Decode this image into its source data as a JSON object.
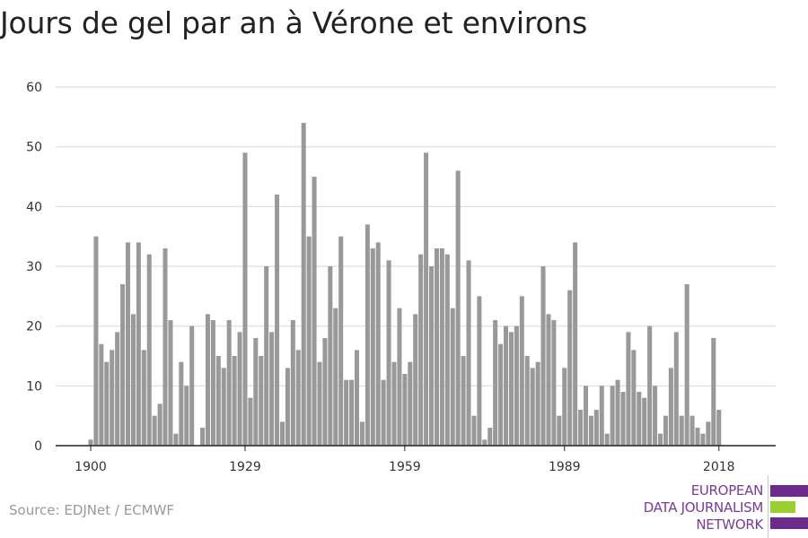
{
  "title": "Jours de gel par an à Vérone et environs",
  "source": "Source: EDJNet / ECMWF",
  "logo": {
    "lines": [
      "EUROPEAN",
      "DATA JOURNALISM",
      "NETWORK"
    ],
    "colors": [
      "#6b2a8c",
      "#9ad02d",
      "#6b2a8c"
    ]
  },
  "colors": {
    "bar": "#999999",
    "grid": "#dddddd",
    "axis": "#222222",
    "text": "#333333"
  },
  "chart_data": {
    "type": "bar",
    "title": "Jours de gel par an à Vérone et environs",
    "xlabel": "",
    "ylabel": "",
    "x_start": 1900,
    "x_ticks": [
      1900,
      1929,
      1959,
      1989,
      2018
    ],
    "y_ticks": [
      0,
      10,
      20,
      30,
      40,
      50,
      60
    ],
    "ylim": [
      0,
      60
    ],
    "grid": true,
    "values": [
      1,
      35,
      17,
      14,
      16,
      19,
      27,
      34,
      22,
      34,
      16,
      32,
      5,
      7,
      33,
      21,
      2,
      14,
      10,
      20,
      0,
      3,
      22,
      21,
      15,
      13,
      21,
      15,
      19,
      49,
      8,
      18,
      15,
      30,
      19,
      42,
      4,
      13,
      21,
      16,
      54,
      35,
      45,
      14,
      18,
      30,
      23,
      35,
      11,
      11,
      16,
      4,
      37,
      33,
      34,
      11,
      31,
      14,
      23,
      12,
      14,
      22,
      32,
      49,
      30,
      33,
      33,
      32,
      23,
      46,
      15,
      31,
      5,
      25,
      1,
      3,
      21,
      17,
      20,
      19,
      20,
      25,
      15,
      13,
      14,
      30,
      22,
      21,
      5,
      13,
      26,
      34,
      6,
      10,
      5,
      6,
      10,
      2,
      10,
      11,
      9,
      19,
      16,
      9,
      8,
      20,
      10,
      2,
      5,
      13,
      19,
      5,
      27,
      5,
      3,
      2,
      4,
      18,
      6
    ]
  }
}
